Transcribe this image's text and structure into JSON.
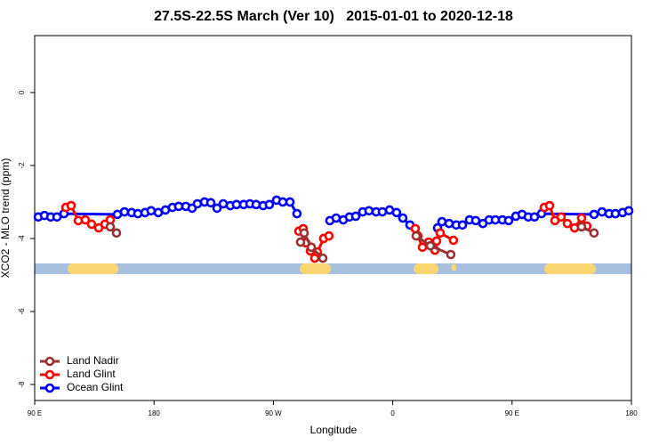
{
  "chart_data": {
    "type": "line",
    "title": "27.5S-22.5S March (Ver 10)   2015-01-01 to 2020-12-18",
    "x_label": "Longitude",
    "y_label": "XCO2 - MLO trend (ppm)",
    "xlim": [
      90,
      540
    ],
    "ylim": [
      -8.44,
      1.56
    ],
    "xticks": [
      {
        "value": 90,
        "label": "90 E"
      },
      180,
      {
        "value": 270,
        "label": "90 W"
      },
      {
        "value": 360,
        "label": "0"
      },
      {
        "value": 450,
        "label": "90 E"
      },
      {
        "value": 540,
        "label": "180"
      }
    ],
    "yticks": [
      0,
      -2,
      -4,
      -6,
      -8
    ],
    "legend": "bottom-left",
    "series": [
      {
        "name": "Land Nadir",
        "color": "#993333",
        "x": [
          147.0,
          151.7,
          null,
          290.5,
          293.2,
          298.6,
          307.3,
          null,
          377.7,
          388.4,
          403.8,
          null,
          502.4,
          511.8
        ],
        "values": [
          -3.68,
          -3.85,
          null,
          -4.1,
          -3.85,
          -4.24,
          -4.54,
          null,
          -3.93,
          -4.2,
          -4.44,
          null,
          -3.68,
          -3.85
        ]
      },
      {
        "name": "Land Glint",
        "color": "#ff0000",
        "x": [
          113.5,
          117.5,
          122.9,
          128.2,
          132.9,
          138.3,
          143.0,
          147.0,
          null,
          289.2,
          292.5,
          294.5,
          297.9,
          301.2,
          303.2,
          307.9,
          311.9,
          null,
          377.0,
          379.0,
          382.4,
          387.1,
          391.8,
          393.1,
          395.8,
          405.8,
          null,
          474.3,
          478.3,
          482.3,
          487.0,
          491.7,
          497.1,
          502.4,
          506.4
        ],
        "values": [
          -3.15,
          -3.1,
          -3.51,
          -3.49,
          -3.61,
          -3.71,
          -3.61,
          -3.49,
          null,
          -3.8,
          -3.73,
          -4.12,
          -4.34,
          -4.54,
          -4.37,
          -4.0,
          -3.93,
          null,
          -3.73,
          -3.93,
          -4.24,
          -4.1,
          -4.32,
          -4.07,
          -3.85,
          -4.05,
          null,
          -3.15,
          -3.1,
          -3.51,
          -3.41,
          -3.59,
          -3.71,
          -3.44,
          -3.66
        ]
      },
      {
        "name": "Ocean Glint",
        "color": "#0000ff",
        "x": [
          92.7,
          97.4,
          102.1,
          106.8,
          112.1,
          152.4,
          157.7,
          163.1,
          167.8,
          173.2,
          177.8,
          183.2,
          188.6,
          193.9,
          198.6,
          204.0,
          208.7,
          212.7,
          218.1,
          222.8,
          227.5,
          232.2,
          237.5,
          242.2,
          247.6,
          252.3,
          257.0,
          262.3,
          267.0,
          272.4,
          277.1,
          282.5,
          287.8,
          null,
          312.6,
          317.3,
          322.7,
          327.4,
          332.1,
          337.4,
          342.1,
          347.5,
          352.2,
          357.6,
          362.9,
          367.6,
          373.0,
          null,
          393.8,
          397.1,
          402.5,
          407.9,
          412.6,
          417.9,
          422.6,
          428.0,
          432.7,
          437.4,
          442.7,
          447.4,
          452.8,
          457.5,
          462.2,
          466.9,
          472.2,
          511.8,
          517.8,
          523.2,
          527.9,
          533.3,
          538.0
        ],
        "values": [
          -3.41,
          -3.37,
          -3.41,
          -3.41,
          -3.32,
          -3.34,
          -3.27,
          -3.29,
          -3.32,
          -3.29,
          -3.24,
          -3.29,
          -3.22,
          -3.15,
          -3.12,
          -3.12,
          -3.17,
          -3.05,
          -3.0,
          -3.02,
          -3.17,
          -3.05,
          -3.1,
          -3.07,
          -3.07,
          -3.05,
          -3.07,
          -3.1,
          -3.07,
          -2.95,
          -3.0,
          -3.0,
          -3.32,
          null,
          -3.51,
          -3.44,
          -3.49,
          -3.41,
          -3.39,
          -3.27,
          -3.24,
          -3.27,
          -3.27,
          -3.22,
          -3.29,
          -3.44,
          -3.63,
          null,
          -3.71,
          -3.54,
          -3.59,
          -3.63,
          -3.63,
          -3.49,
          -3.51,
          -3.59,
          -3.49,
          -3.49,
          -3.49,
          -3.51,
          -3.39,
          -3.34,
          -3.41,
          -3.41,
          -3.32,
          -3.34,
          -3.27,
          -3.32,
          -3.32,
          -3.29,
          -3.24
        ]
      }
    ]
  }
}
